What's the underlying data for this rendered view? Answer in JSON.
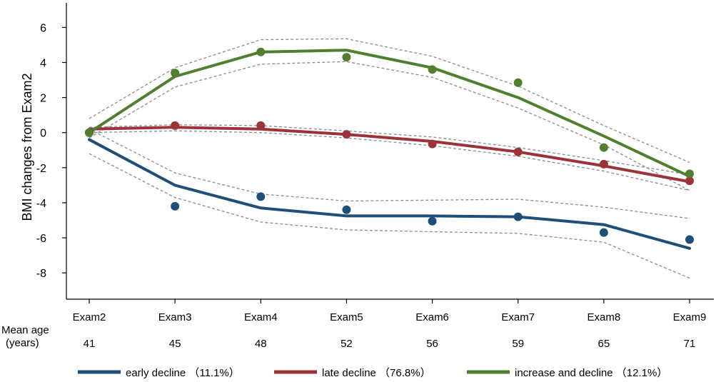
{
  "chart_data": {
    "type": "line",
    "ylabel": "BMI changes from Exam2",
    "ylim": [
      -9.5,
      7.4
    ],
    "yticks": [
      6,
      4,
      2,
      0,
      -2,
      -4,
      -6,
      -8
    ],
    "categories": [
      "Exam2",
      "Exam3",
      "Exam4",
      "Exam5",
      "Exam6",
      "Exam7",
      "Exam8",
      "Exam9"
    ],
    "mean_age": {
      "label_line1": "Mean age",
      "label_line2": "(years)",
      "values": [
        "41",
        "45",
        "48",
        "52",
        "56",
        "59",
        "65",
        "71"
      ]
    },
    "grid": false,
    "legend_position": "bottom",
    "series": [
      {
        "name": "early decline （11.1%）",
        "color": "#1f4e79",
        "fitted": [
          -0.4,
          -3.0,
          -4.3,
          -4.75,
          -4.75,
          -4.8,
          -5.25,
          -6.6
        ],
        "observed": [
          0.0,
          -4.2,
          -3.65,
          -4.4,
          -5.05,
          -4.8,
          -5.7,
          -6.1
        ],
        "ci_upper": [
          0.2,
          -2.3,
          -3.5,
          -3.9,
          -3.85,
          -3.8,
          -4.25,
          -4.9
        ],
        "ci_lower": [
          -1.2,
          -3.7,
          -5.1,
          -5.55,
          -5.65,
          -5.75,
          -6.25,
          -8.3
        ]
      },
      {
        "name": "late decline （76.8%）",
        "color": "#9b3339",
        "fitted": [
          0.2,
          0.3,
          0.2,
          -0.1,
          -0.5,
          -1.1,
          -1.9,
          -2.8
        ],
        "observed": [
          0.0,
          0.4,
          0.4,
          -0.1,
          -0.65,
          -1.1,
          -1.8,
          -2.75
        ],
        "ci_upper": [
          0.3,
          0.45,
          0.4,
          0.1,
          -0.25,
          -0.85,
          -1.6,
          -2.4
        ],
        "ci_lower": [
          0.0,
          0.1,
          0.0,
          -0.3,
          -0.75,
          -1.35,
          -2.2,
          -3.3
        ]
      },
      {
        "name": "increase and decline （12.1%）",
        "color": "#4f7f2f",
        "fitted": [
          0.0,
          3.2,
          4.6,
          4.7,
          3.7,
          2.0,
          -0.2,
          -2.5
        ],
        "observed": [
          0.0,
          3.4,
          4.6,
          4.3,
          3.6,
          2.85,
          -0.85,
          -2.35
        ],
        "ci_upper": [
          0.8,
          3.7,
          5.3,
          5.35,
          4.35,
          2.65,
          0.4,
          -1.7
        ],
        "ci_lower": [
          -0.3,
          2.6,
          3.9,
          4.05,
          3.15,
          1.4,
          -0.7,
          -3.3
        ]
      }
    ]
  }
}
